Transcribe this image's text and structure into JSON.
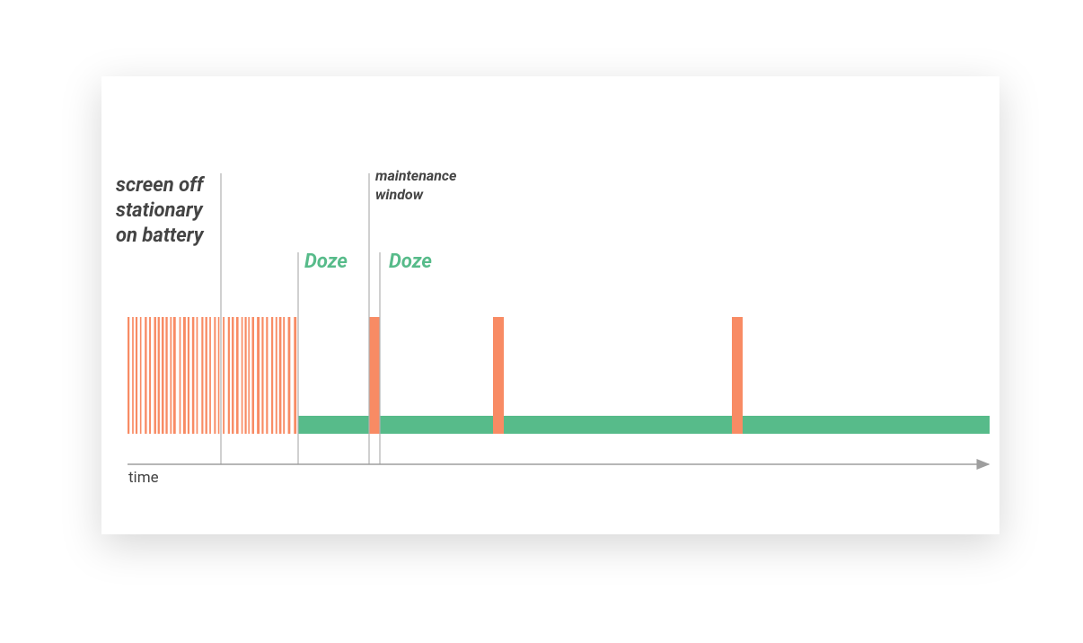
{
  "labels": {
    "trigger": [
      "screen off",
      "stationary",
      "on battery"
    ],
    "maintenance": [
      "maintenance",
      "window"
    ],
    "doze": [
      "Doze",
      "Doze"
    ],
    "axis": "time"
  }
}
